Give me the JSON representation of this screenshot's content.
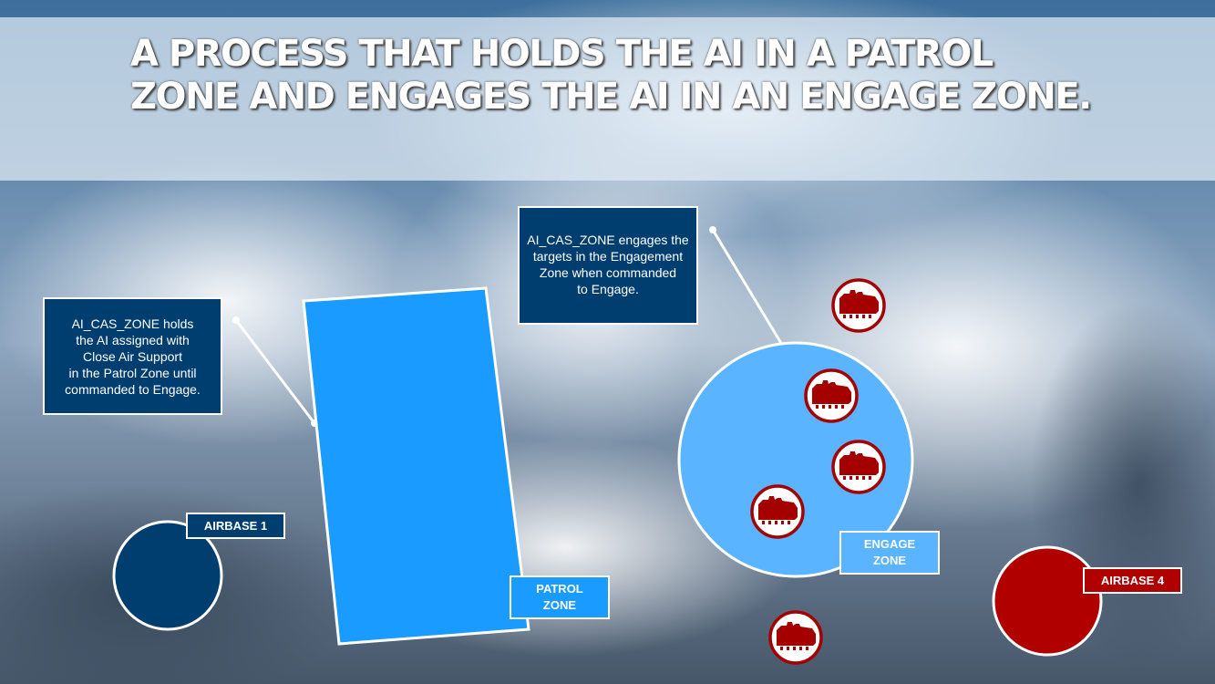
{
  "title": "A PROCESS THAT HOLDS THE AI IN A PATROL ZONE AND ENGAGES THE AI IN AN ENGAGE ZONE.",
  "callout_patrol": {
    "lines": [
      "AI_CAS_ZONE holds",
      "the AI assigned with",
      "Close Air Support",
      "in the Patrol Zone until",
      "commanded to Engage."
    ]
  },
  "callout_engage": {
    "lines": [
      "AI_CAS_ZONE engages the",
      "targets in the Engagement",
      "Zone when commanded",
      "to Engage."
    ]
  },
  "labels": {
    "patrol_zone": [
      "PATROL",
      "ZONE"
    ],
    "engage_zone": [
      "ENGAGE",
      "ZONE"
    ],
    "airbase_1": "AIRBASE 1",
    "airbase_4": "AIRBASE 4"
  },
  "colors": {
    "dark_blue": "#003e70",
    "patrol_blue": "#1a9bff",
    "engage_blue": "#5ab4ff",
    "enemy_red": "#a50000",
    "airbase_red": "#b00000"
  },
  "icons": {
    "target": "tank-icon"
  }
}
